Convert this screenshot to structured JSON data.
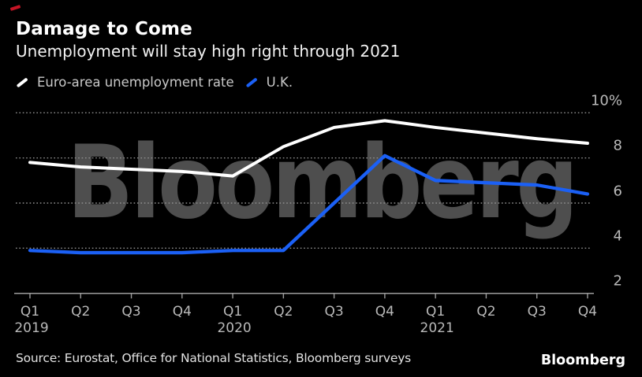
{
  "annotation": {
    "red_mark_color": "#c41425"
  },
  "header": {
    "title": "Damage to Come",
    "subtitle": "Unemployment will stay high right through 2021"
  },
  "legend": {
    "items": [
      {
        "label": "Euro-area unemployment rate",
        "color": "#ffffff"
      },
      {
        "label": "U.K.",
        "color": "#1b60f5"
      }
    ]
  },
  "watermark": {
    "text": "Bloomberg",
    "color": "#4e4e4e"
  },
  "chart_data": {
    "type": "line",
    "title": "Damage to Come",
    "subtitle": "Unemployment will stay high right through 2021",
    "unit": "%",
    "ylim": [
      2,
      10
    ],
    "grid": "horizontal-dotted",
    "legend_position": "top-left",
    "categories": [
      "Q1 2019",
      "Q2 2019",
      "Q3 2019",
      "Q4 2019",
      "Q1 2020",
      "Q2 2020",
      "Q3 2020",
      "Q4 2020",
      "Q1 2021",
      "Q2 2021",
      "Q3 2021",
      "Q4 2021"
    ],
    "x_tick_labels": [
      {
        "q": "Q1",
        "year": "2019"
      },
      {
        "q": "Q2"
      },
      {
        "q": "Q3"
      },
      {
        "q": "Q4"
      },
      {
        "q": "Q1",
        "year": "2020"
      },
      {
        "q": "Q2"
      },
      {
        "q": "Q3"
      },
      {
        "q": "Q4"
      },
      {
        "q": "Q1",
        "year": "2021"
      },
      {
        "q": "Q2"
      },
      {
        "q": "Q3"
      },
      {
        "q": "Q4"
      }
    ],
    "y_ticks": [
      {
        "value": 10,
        "label": "10%"
      },
      {
        "value": 8,
        "label": "8"
      },
      {
        "value": 6,
        "label": "6"
      },
      {
        "value": 4,
        "label": "4"
      },
      {
        "value": 2,
        "label": "2"
      }
    ],
    "series": [
      {
        "name": "Euro-area unemployment rate",
        "color": "#ffffff",
        "values": [
          7.8,
          7.6,
          7.5,
          7.4,
          7.2,
          8.5,
          9.35,
          9.65,
          9.35,
          9.1,
          8.85,
          8.65
        ]
      },
      {
        "name": "U.K.",
        "color": "#1b60f5",
        "values": [
          3.9,
          3.8,
          3.8,
          3.8,
          3.9,
          3.9,
          6.0,
          8.1,
          7.0,
          6.9,
          6.8,
          6.4
        ]
      }
    ]
  },
  "footer": {
    "source": "Source: Eurostat, Office for National Statistics, Bloomberg surveys",
    "logo": "Bloomberg"
  }
}
